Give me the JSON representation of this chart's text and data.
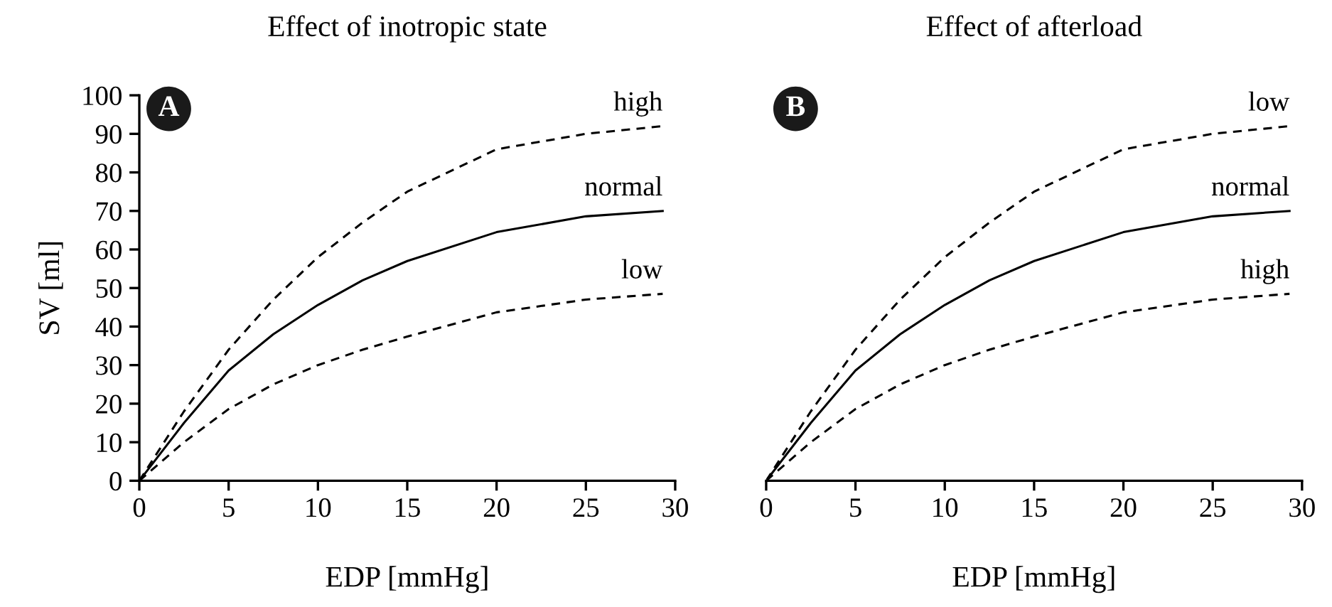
{
  "chart_data": [
    {
      "type": "line",
      "title": "Effect of inotropic state",
      "xlabel": "EDP [mmHg]",
      "ylabel": "SV [ml]",
      "annotations": [
        "A"
      ],
      "x": [
        0,
        2.5,
        5,
        7.5,
        10,
        12.5,
        15,
        20,
        25,
        29.3
      ],
      "xlim": [
        0,
        30
      ],
      "xticks": [
        0,
        5,
        10,
        15,
        20,
        25,
        30
      ],
      "ylim": [
        0,
        100
      ],
      "yticks": [
        0,
        10,
        20,
        30,
        40,
        50,
        60,
        70,
        80,
        90,
        100
      ],
      "grid": false,
      "legend": false,
      "series": [
        {
          "name": "high",
          "color": "#000000",
          "line_style": "dashed",
          "values": [
            0,
            18,
            34,
            47,
            58,
            67,
            75,
            86,
            90,
            92
          ]
        },
        {
          "name": "normal",
          "color": "#000000",
          "line_style": "solid",
          "values": [
            0,
            15,
            28.6,
            38,
            45.6,
            52,
            57,
            64.5,
            68.6,
            70
          ]
        },
        {
          "name": "low",
          "color": "#000000",
          "line_style": "dashed",
          "values": [
            0,
            10,
            18.6,
            25,
            30,
            34,
            37.4,
            43.7,
            47,
            48.5
          ]
        }
      ]
    },
    {
      "type": "line",
      "title": "Effect of afterload",
      "xlabel": "EDP [mmHg]",
      "annotations": [
        "B"
      ],
      "x": [
        0,
        2.5,
        5,
        7.5,
        10,
        12.5,
        15,
        20,
        25,
        29.3
      ],
      "xlim": [
        0,
        30
      ],
      "xticks": [
        0,
        5,
        10,
        15,
        20,
        25,
        30
      ],
      "ylim": [
        0,
        100
      ],
      "tick_labels": "x",
      "grid": false,
      "legend": false,
      "series": [
        {
          "name": "low",
          "color": "#000000",
          "line_style": "dashed",
          "values": [
            0,
            18,
            34,
            47,
            58,
            67,
            75,
            86,
            90,
            92
          ]
        },
        {
          "name": "normal",
          "color": "#000000",
          "line_style": "solid",
          "values": [
            0,
            15,
            28.6,
            38,
            45.6,
            52,
            57,
            64.5,
            68.6,
            70
          ]
        },
        {
          "name": "high",
          "color": "#000000",
          "line_style": "dashed",
          "values": [
            0,
            10,
            18.6,
            25,
            30,
            34,
            37.4,
            43.7,
            47,
            48.5
          ]
        }
      ]
    }
  ]
}
